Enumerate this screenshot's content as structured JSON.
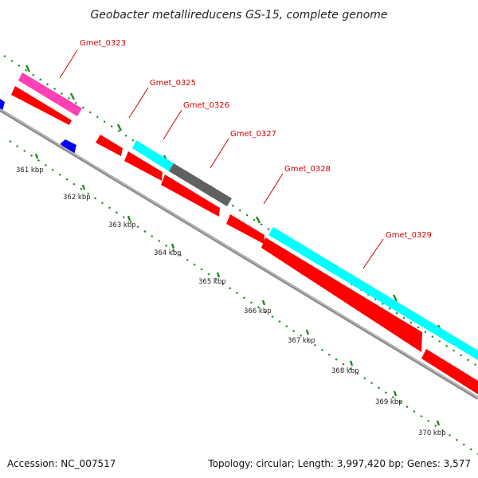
{
  "title": "Geobacter metallireducens GS-15, complete genome",
  "footer": {
    "accession": "Accession: NC_007517",
    "summary": "Topology: circular; Length: 3,997,420 bp; Genes: 3,577"
  },
  "colors": {
    "backbone": "#8c8c8c",
    "tick_dots": "#1f8a1f",
    "label_text": "#d40000",
    "leader_line": "#d40000",
    "cds_forward": "#ff0000",
    "cds_reverse": "#ff0000",
    "rrna_or_other": "#00ffff",
    "trna": "#ff3fb4",
    "misc": "#606060",
    "blue_feature": "#0000ff"
  },
  "ruler": {
    "unit": "kbp",
    "ticks": [
      {
        "label": "361 kbp"
      },
      {
        "label": "362 kbp"
      },
      {
        "label": "363 kbp"
      },
      {
        "label": "364 kbp"
      },
      {
        "label": "365 kbp"
      },
      {
        "label": "366 kbp"
      },
      {
        "label": "367 kbp"
      },
      {
        "label": "368 kbp"
      },
      {
        "label": "369 kbp"
      },
      {
        "label": "370 kbp"
      }
    ]
  },
  "gene_labels": [
    {
      "name": "Gmet_0323"
    },
    {
      "name": "Gmet_0325"
    },
    {
      "name": "Gmet_0326"
    },
    {
      "name": "Gmet_0327"
    },
    {
      "name": "Gmet_0328"
    },
    {
      "name": "Gmet_0329"
    }
  ]
}
